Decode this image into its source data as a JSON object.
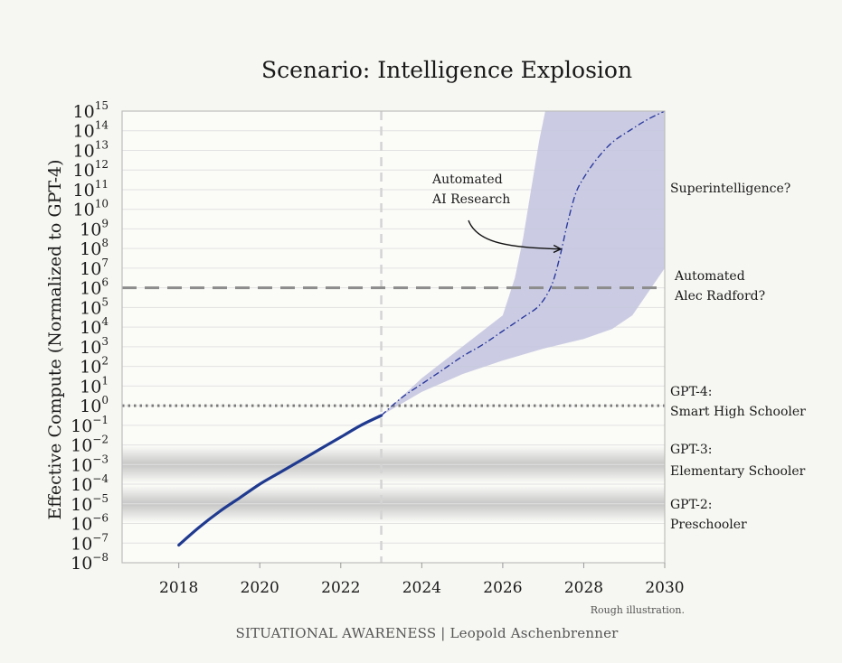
{
  "chart_data": {
    "type": "line",
    "title": "Scenario: Intelligence Explosion",
    "ylabel": "Effective Compute (Normalized to GPT-4)",
    "xlabel": "",
    "x_ticks": [
      2018,
      2020,
      2022,
      2024,
      2026,
      2028,
      2030
    ],
    "xlim": [
      2016.6,
      2030
    ],
    "y_scale": "log",
    "y_exponents": [
      -8,
      -7,
      -6,
      -5,
      -4,
      -3,
      -2,
      -1,
      0,
      1,
      2,
      3,
      4,
      5,
      6,
      7,
      8,
      9,
      10,
      11,
      12,
      13,
      14,
      15
    ],
    "ylim_exponent": [
      -8,
      15
    ],
    "grid": true,
    "series": [
      {
        "style": "solid",
        "color": "#1f3a8f",
        "points": [
          [
            2018,
            -7.1
          ],
          [
            2018.5,
            -6.2
          ],
          [
            2019,
            -5.4
          ],
          [
            2019.5,
            -4.7
          ],
          [
            2020,
            -4.0
          ],
          [
            2020.5,
            -3.4
          ],
          [
            2021,
            -2.8
          ],
          [
            2021.5,
            -2.2
          ],
          [
            2022,
            -1.6
          ],
          [
            2022.5,
            -1.0
          ],
          [
            2023,
            -0.5
          ]
        ]
      },
      {
        "style": "dash-dot",
        "color": "#2c3a9e",
        "points": [
          [
            2023,
            -0.5
          ],
          [
            2023.5,
            0.4
          ],
          [
            2024,
            1.1
          ],
          [
            2024.5,
            1.8
          ],
          [
            2025,
            2.5
          ],
          [
            2025.5,
            3.1
          ],
          [
            2026,
            3.8
          ],
          [
            2026.5,
            4.5
          ],
          [
            2026.9,
            5.1
          ],
          [
            2027.2,
            6.1
          ],
          [
            2027.4,
            7.5
          ],
          [
            2027.6,
            9.3
          ],
          [
            2027.8,
            10.8
          ],
          [
            2028,
            11.6
          ],
          [
            2028.3,
            12.5
          ],
          [
            2028.7,
            13.4
          ],
          [
            2029.2,
            14.1
          ],
          [
            2029.6,
            14.6
          ],
          [
            2030,
            15.0
          ]
        ]
      }
    ],
    "band": {
      "color": "#c5c7e0",
      "upper": [
        [
          2023,
          -0.5
        ],
        [
          2024,
          1.4
        ],
        [
          2025,
          3.0
        ],
        [
          2026,
          4.6
        ],
        [
          2026.3,
          6.5
        ],
        [
          2026.5,
          8.5
        ],
        [
          2026.7,
          11.0
        ],
        [
          2026.9,
          13.5
        ],
        [
          2027.05,
          15.0
        ]
      ],
      "lower": [
        [
          2023,
          -0.5
        ],
        [
          2024,
          0.7
        ],
        [
          2025,
          1.6
        ],
        [
          2026,
          2.3
        ],
        [
          2027,
          2.9
        ],
        [
          2028,
          3.4
        ],
        [
          2028.7,
          3.9
        ],
        [
          2029.2,
          4.6
        ],
        [
          2029.6,
          5.8
        ],
        [
          2030,
          7.0
        ]
      ]
    },
    "reference_lines": [
      {
        "y_exponent": 6,
        "style": "dashed",
        "label": [
          "Automated",
          "Alec Radford?"
        ]
      },
      {
        "y_exponent": 0,
        "style": "dotted",
        "label": [
          "GPT-4:",
          "Smart High Schooler"
        ]
      }
    ],
    "vertical_marker": {
      "x": 2023,
      "style": "dashed"
    },
    "shaded_bands": [
      {
        "center_exponent": -3,
        "label": [
          "GPT-3:",
          "Elementary Schooler"
        ]
      },
      {
        "center_exponent": -5,
        "label": [
          "GPT-2:",
          "Preschooler"
        ]
      }
    ],
    "annotations": [
      {
        "text": [
          "Automated",
          "AI Research"
        ],
        "arrow_to": [
          2027.5,
          8
        ]
      },
      {
        "text": [
          "Superintelligence?"
        ]
      }
    ],
    "note": "Rough illustration.",
    "footer": "SITUATIONAL AWARENESS | Leopold Aschenbrenner"
  }
}
